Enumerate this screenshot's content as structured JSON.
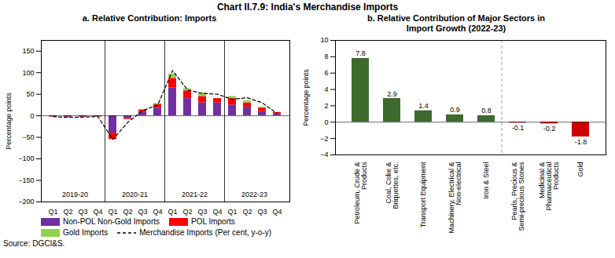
{
  "title": "Chart II.7.9: India's Merchandise Imports",
  "annotations": [
    "Source: DGCI&S."
  ],
  "chart_data": [
    {
      "type": "bar",
      "title": "a. Relative Contribution: Imports",
      "categories": [
        "Q1",
        "Q2",
        "Q3",
        "Q4",
        "Q1",
        "Q2",
        "Q3",
        "Q4",
        "Q1",
        "Q2",
        "Q3",
        "Q4",
        "Q1",
        "Q2",
        "Q3",
        "Q4"
      ],
      "series": [
        {
          "name": "Non-POL Non-Gold Imports",
          "type": "bar",
          "color": "#7030a0",
          "values": [
            -2,
            -3,
            -2,
            -2,
            -40,
            -5,
            8,
            18,
            65,
            40,
            30,
            30,
            25,
            20,
            10,
            5
          ]
        },
        {
          "name": "POL Imports",
          "type": "bar",
          "color": "#ff0000",
          "values": [
            -1,
            -1,
            -1,
            -1,
            -15,
            -3,
            5,
            8,
            22,
            18,
            15,
            10,
            15,
            10,
            8,
            3
          ]
        },
        {
          "name": "Gold Imports",
          "type": "bar",
          "color": "#92d050",
          "values": [
            0,
            0,
            0,
            0,
            0,
            0,
            2,
            3,
            10,
            5,
            8,
            0,
            5,
            5,
            2,
            0
          ]
        },
        {
          "name": "Merchandise Imports (Per cent, y-o-y)",
          "type": "line",
          "line_style": "dashed",
          "color": "#000000",
          "values": [
            -2,
            -4,
            -3,
            -2,
            -55,
            -15,
            12,
            25,
            105,
            60,
            52,
            50,
            38,
            42,
            30,
            5
          ]
        }
      ],
      "stacked": true,
      "annotations": [
        "2019-20",
        "2020-21",
        "2021-22",
        "2022-23"
      ],
      "ylabel": "Percentage points",
      "ylim": [
        -200,
        175
      ],
      "yticks": [
        -200,
        -150,
        -100,
        -50,
        0,
        50,
        100,
        150
      ],
      "grid": false,
      "legend": "bottom"
    },
    {
      "type": "bar",
      "title": "b. Relative Contribution of Major Sectors in\nImport Growth (2022-23)",
      "categories": [
        "Petroleum, Crude &\nProducts",
        "Coal, Coke &\nBriquettes, etc.",
        "Transport Equipment",
        "Machinery, Electrical &\nNon-electrical",
        "Iron & Steel",
        "Pearls, Precious &\nSemi-precious Stones",
        "Medicinal &\nPharmaceutical\nProducts",
        "Gold"
      ],
      "values": [
        7.8,
        2.9,
        1.4,
        0.9,
        0.8,
        -0.1,
        -0.2,
        -1.8
      ],
      "colors": [
        "#3d6b2e",
        "#3d6b2e",
        "#3d6b2e",
        "#3d6b2e",
        "#3d6b2e",
        "#cc0000",
        "#cc0000",
        "#cc0000"
      ],
      "data_labels": true,
      "ylabel": "Percentage points",
      "ylim": [
        -4,
        10
      ],
      "yticks": [
        -4,
        -2,
        0,
        2,
        4,
        6,
        8,
        10
      ],
      "grid": false
    }
  ]
}
